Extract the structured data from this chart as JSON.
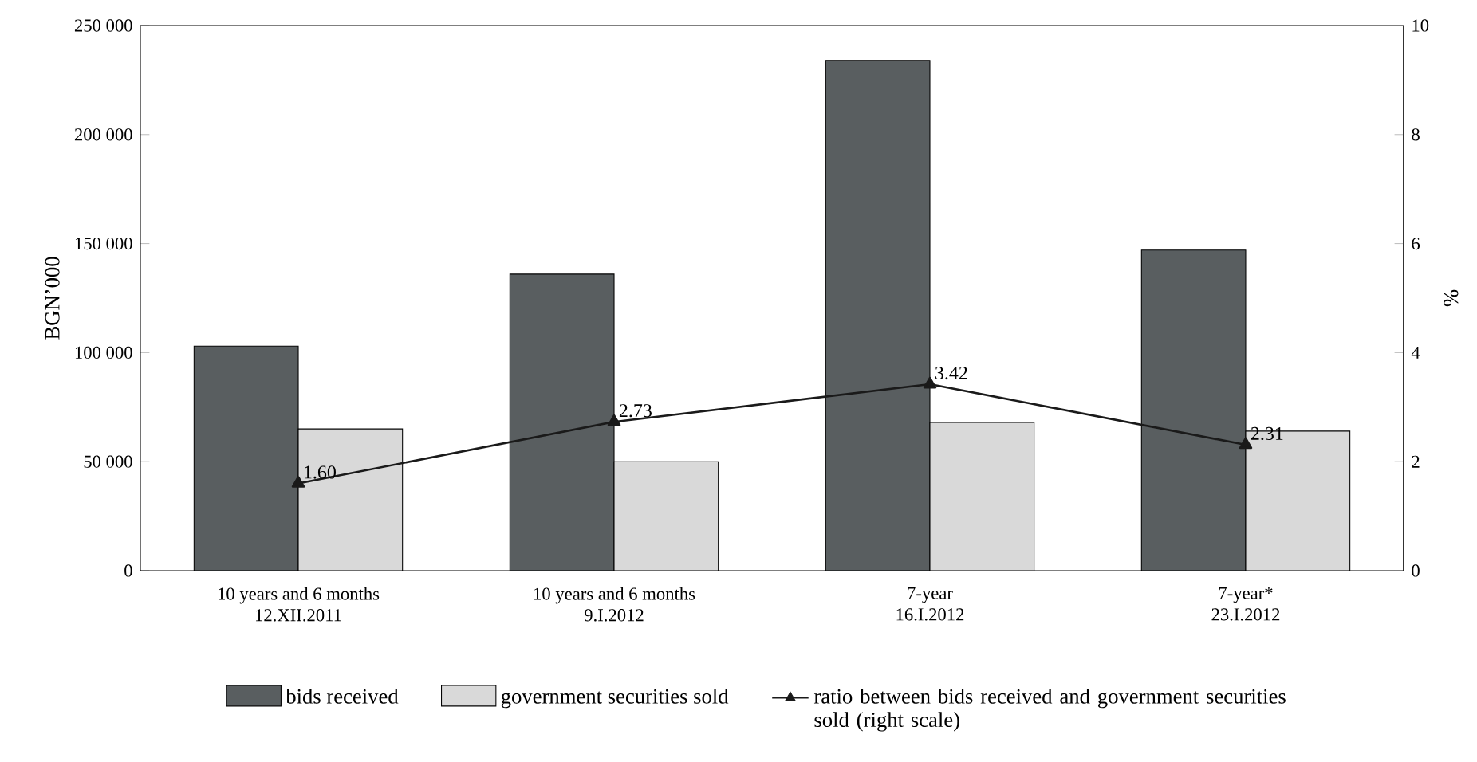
{
  "chart_data": {
    "type": "bar",
    "categories": [
      "10 years and 6 months\n12.XII.2011",
      "10 years and 6 months\n9.I.2012",
      "7-year\n16.I.2012",
      "7-year*\n23.I.2012"
    ],
    "ylabel": "BGN’000",
    "y2label": "%",
    "ylim": [
      0,
      250000
    ],
    "yticks": [
      {
        "value": 0,
        "label": "0"
      },
      {
        "value": 50000,
        "label": "50 000"
      },
      {
        "value": 100000,
        "label": "100 000"
      },
      {
        "value": 150000,
        "label": "150 000"
      },
      {
        "value": 200000,
        "label": "200 000"
      },
      {
        "value": 250000,
        "label": "250 000"
      }
    ],
    "y2lim": [
      0,
      10
    ],
    "y2ticks": [
      0,
      2,
      4,
      6,
      8,
      10
    ],
    "legend": "bottom",
    "series": [
      {
        "name": "bids received",
        "color": "#595e60",
        "values": [
          103000,
          136000,
          234000,
          147000
        ]
      },
      {
        "name": "government securities sold",
        "color": "#d9d9d9",
        "values": [
          65000,
          50000,
          68000,
          64000
        ]
      },
      {
        "name": "ratio between bids received and government securities sold (right scale)",
        "type": "line",
        "axis": "y2",
        "marker": "triangle",
        "color": "#1a1a1a",
        "values": [
          1.6,
          2.73,
          3.42,
          2.31
        ],
        "value_labels": [
          "1.60",
          "2.73",
          "3.42",
          "2.31"
        ]
      }
    ]
  }
}
